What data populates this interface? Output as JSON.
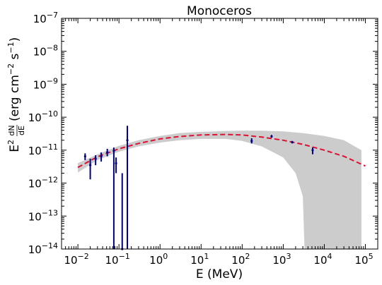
{
  "chart_data": {
    "type": "scatter",
    "title": "Monoceros",
    "xlabel": "E (MeV)",
    "ylabel": "E² dN/dE (erg cm⁻² s⁻¹)",
    "ylabel_parts": {
      "e2": "E",
      "sup2": "2",
      "frac_num": "dN",
      "frac_den": "dE",
      "units_open": "(erg cm",
      "sup_cm": "−2",
      "units_mid": " s",
      "sup_s": "−1",
      "units_close": ")"
    },
    "x_scale": "log",
    "y_scale": "log",
    "xlim": [
      0.004,
      200000
    ],
    "ylim": [
      1e-14,
      1e-07
    ],
    "x_ticks": [
      {
        "value": 0.01,
        "base": "10",
        "exp": "−2"
      },
      {
        "value": 0.1,
        "base": "10",
        "exp": "−1"
      },
      {
        "value": 1,
        "base": "10",
        "exp": "0"
      },
      {
        "value": 10,
        "base": "10",
        "exp": "1"
      },
      {
        "value": 100,
        "base": "10",
        "exp": "2"
      },
      {
        "value": 1000,
        "base": "10",
        "exp": "3"
      },
      {
        "value": 10000,
        "base": "10",
        "exp": "4"
      },
      {
        "value": 100000,
        "base": "10",
        "exp": "5"
      }
    ],
    "y_ticks": [
      {
        "value": 1e-14,
        "base": "10",
        "exp": "−14"
      },
      {
        "value": 1e-13,
        "base": "10",
        "exp": "−13"
      },
      {
        "value": 1e-12,
        "base": "10",
        "exp": "−12"
      },
      {
        "value": 1e-11,
        "base": "10",
        "exp": "−11"
      },
      {
        "value": 1e-10,
        "base": "10",
        "exp": "−10"
      },
      {
        "value": 1e-09,
        "base": "10",
        "exp": "−9"
      },
      {
        "value": 1e-08,
        "base": "10",
        "exp": "−8"
      },
      {
        "value": 1e-07,
        "base": "10",
        "exp": "−7"
      }
    ],
    "grid": false,
    "model_curve": {
      "style": "dashed",
      "color": "#dd1133",
      "points": [
        [
          0.01,
          3e-12
        ],
        [
          0.03,
          6.3e-12
        ],
        [
          0.1,
          1.1e-11
        ],
        [
          0.3,
          1.6e-11
        ],
        [
          1,
          2.2e-11
        ],
        [
          3,
          2.6e-11
        ],
        [
          10,
          2.9e-11
        ],
        [
          40,
          3e-11
        ],
        [
          100,
          2.9e-11
        ],
        [
          300,
          2.5e-11
        ],
        [
          1000,
          2e-11
        ],
        [
          3000,
          1.5e-11
        ],
        [
          10000,
          1e-11
        ],
        [
          30000,
          6.5e-12
        ],
        [
          100000,
          3.3e-12
        ]
      ]
    },
    "uncertainty_band": {
      "color": "#cccccc",
      "upper": [
        [
          0.01,
          4e-12
        ],
        [
          0.03,
          7.5e-12
        ],
        [
          0.1,
          1.35e-11
        ],
        [
          0.3,
          2e-11
        ],
        [
          1,
          2.7e-11
        ],
        [
          3,
          3.3e-11
        ],
        [
          10,
          3.6e-11
        ],
        [
          40,
          3.8e-11
        ],
        [
          100,
          3.9e-11
        ],
        [
          300,
          3.9e-11
        ],
        [
          1000,
          3.7e-11
        ],
        [
          3000,
          3.3e-11
        ],
        [
          10000,
          2.7e-11
        ],
        [
          30000,
          2e-11
        ],
        [
          80000,
          1e-11
        ]
      ],
      "lower": [
        [
          0.01,
          2.1e-12
        ],
        [
          0.03,
          5e-12
        ],
        [
          0.1,
          9e-12
        ],
        [
          0.3,
          1.3e-11
        ],
        [
          1,
          1.7e-11
        ],
        [
          3,
          2e-11
        ],
        [
          10,
          2.2e-11
        ],
        [
          40,
          2.2e-11
        ],
        [
          100,
          1.9e-11
        ],
        [
          300,
          1.3e-11
        ],
        [
          1000,
          6e-12
        ],
        [
          2000,
          2e-12
        ],
        [
          3000,
          4e-13
        ],
        [
          3300,
          1e-14
        ]
      ],
      "x_end": 80000
    },
    "data_points": {
      "color": "#000080",
      "points": [
        {
          "x": 0.015,
          "y": 6.5e-12,
          "lo": 5e-12,
          "hi": 8e-12
        },
        {
          "x": 0.02,
          "y": 3.5e-12,
          "lo": 1.3e-12,
          "hi": 5.5e-12
        },
        {
          "x": 0.027,
          "y": 5.5e-12,
          "lo": 3.5e-12,
          "hi": 7e-12
        },
        {
          "x": 0.037,
          "y": 6.5e-12,
          "lo": 4.5e-12,
          "hi": 8.5e-12
        },
        {
          "x": 0.052,
          "y": 8.5e-12,
          "lo": 6.5e-12,
          "hi": 1.1e-11
        },
        {
          "x": 0.075,
          "y": 9.5e-12,
          "lo": 1e-14,
          "hi": 1.2e-11
        },
        {
          "x": 0.085,
          "y": 4e-12,
          "lo": 2e-12,
          "hi": 6e-12
        },
        {
          "x": 0.12,
          "y": 1e-14,
          "lo": 1e-14,
          "hi": 2e-12
        },
        {
          "x": 0.16,
          "y": 2e-11,
          "lo": 1e-14,
          "hi": 5.5e-11
        },
        {
          "x": 170,
          "y": 1.9e-11,
          "lo": 1.6e-11,
          "hi": 2.3e-11
        },
        {
          "x": 520,
          "y": 2.6e-11,
          "lo": 2.4e-11,
          "hi": 2.9e-11
        },
        {
          "x": 1650,
          "y": 1.75e-11,
          "lo": 1.6e-11,
          "hi": 1.9e-11
        },
        {
          "x": 5200,
          "y": 1e-11,
          "lo": 7.5e-12,
          "hi": 1.2e-11
        }
      ]
    }
  }
}
